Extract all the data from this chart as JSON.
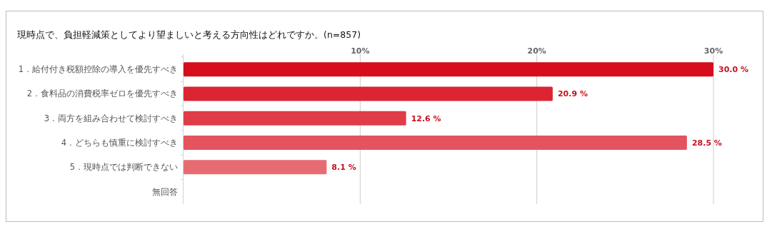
{
  "chart_data": {
    "type": "bar",
    "orientation": "horizontal",
    "title": "現時点で、負担軽減策としてより望ましいと考える方向性はどれですか。(n=857)",
    "categories": [
      "1．給付付き税額控除の導入を優先すべき",
      "2．食料品の消費税率ゼロを優先すべき",
      "3．両方を組み合わせて検討すべき",
      "4．どちらも慎重に検討すべき",
      "5．現時点では判断できない",
      "無回答"
    ],
    "values": [
      30.0,
      20.9,
      12.6,
      28.5,
      8.1,
      null
    ],
    "value_labels": [
      "30.0 %",
      "20.9 %",
      "12.6 %",
      "28.5 %",
      "8.1 %",
      null
    ],
    "colors": [
      "#d60d1a",
      "#dc2432",
      "#e03c47",
      "#e3545e",
      "#e86b73",
      null
    ],
    "xlim": [
      0,
      30
    ],
    "xticks": [
      {
        "value": 10,
        "label": "10%"
      },
      {
        "value": 20,
        "label": "20%"
      },
      {
        "value": 30,
        "label": "30%"
      }
    ],
    "grid": "x"
  }
}
